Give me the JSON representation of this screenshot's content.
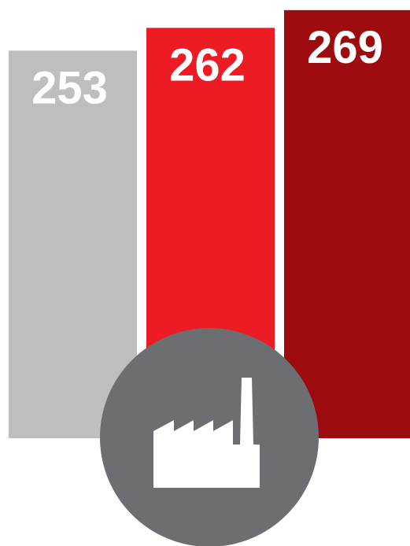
{
  "chart_data": {
    "type": "bar",
    "categories": [
      null,
      null,
      null
    ],
    "values": [
      253,
      262,
      269
    ],
    "colors": [
      "#bcbec0",
      "#ed1c24",
      "#9e0b0f"
    ],
    "ylim": [
      100,
      273
    ]
  }
}
